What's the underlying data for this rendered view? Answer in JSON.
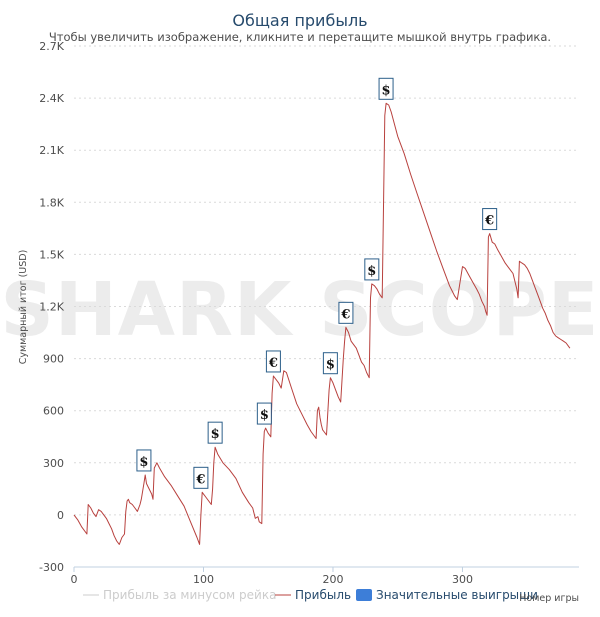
{
  "chart_data": {
    "type": "line",
    "title": "Общая прибыль",
    "subtitle": "Чтобы увеличить изображение, кликните и перетащите мышкой внутрь графика.",
    "xlabel": "Номер игры",
    "ylabel": "Суммарный итог (USD)",
    "xlim": [
      0,
      390
    ],
    "ylim": [
      -300,
      2700
    ],
    "x_ticks": [
      0,
      100,
      200,
      300
    ],
    "y_ticks": [
      -300,
      0,
      300,
      600,
      900,
      1200,
      1500,
      1800,
      2100,
      2400,
      2700
    ],
    "y_tick_labels": [
      "-300",
      "0",
      "300",
      "600",
      "900",
      "1.2K",
      "1.5K",
      "1.8K",
      "2.1K",
      "2.4K",
      "2.7K"
    ],
    "grid": true,
    "watermark": "SHARK SCOPE",
    "legend": {
      "placement": "bottom",
      "items": [
        {
          "label": "Прибыль за минусом рейка",
          "color": "#cccccc",
          "symbol": "line"
        },
        {
          "label": "Прибыль",
          "color": "#b8413e",
          "symbol": "line"
        },
        {
          "label": "Значительные выигрыши",
          "color": "#3d7ed8",
          "symbol": "box"
        }
      ]
    },
    "series": [
      {
        "name": "Прибыль",
        "color": "#b8413e",
        "points": [
          [
            0,
            0
          ],
          [
            3,
            -30
          ],
          [
            6,
            -70
          ],
          [
            10,
            -110
          ],
          [
            11,
            60
          ],
          [
            13,
            40
          ],
          [
            15,
            10
          ],
          [
            17,
            -10
          ],
          [
            19,
            30
          ],
          [
            21,
            20
          ],
          [
            23,
            0
          ],
          [
            25,
            -20
          ],
          [
            27,
            -50
          ],
          [
            29,
            -80
          ],
          [
            31,
            -120
          ],
          [
            33,
            -150
          ],
          [
            35,
            -170
          ],
          [
            37,
            -130
          ],
          [
            39,
            -110
          ],
          [
            40,
            20
          ],
          [
            41,
            80
          ],
          [
            42,
            90
          ],
          [
            43,
            70
          ],
          [
            45,
            60
          ],
          [
            47,
            40
          ],
          [
            49,
            20
          ],
          [
            51,
            60
          ],
          [
            52,
            90
          ],
          [
            54,
            180
          ],
          [
            55,
            230
          ],
          [
            56,
            180
          ],
          [
            58,
            150
          ],
          [
            60,
            120
          ],
          [
            61,
            90
          ],
          [
            62,
            270
          ],
          [
            64,
            300
          ],
          [
            66,
            270
          ],
          [
            70,
            220
          ],
          [
            75,
            170
          ],
          [
            80,
            110
          ],
          [
            85,
            50
          ],
          [
            90,
            -40
          ],
          [
            95,
            -130
          ],
          [
            97,
            -170
          ],
          [
            98,
            0
          ],
          [
            99,
            130
          ],
          [
            100,
            120
          ],
          [
            102,
            100
          ],
          [
            104,
            80
          ],
          [
            106,
            60
          ],
          [
            107,
            150
          ],
          [
            108,
            300
          ],
          [
            109,
            390
          ],
          [
            111,
            350
          ],
          [
            115,
            300
          ],
          [
            120,
            260
          ],
          [
            125,
            210
          ],
          [
            130,
            130
          ],
          [
            135,
            70
          ],
          [
            138,
            40
          ],
          [
            140,
            -20
          ],
          [
            142,
            -10
          ],
          [
            143,
            -40
          ],
          [
            145,
            -50
          ],
          [
            146,
            350
          ],
          [
            147,
            480
          ],
          [
            148,
            500
          ],
          [
            150,
            470
          ],
          [
            152,
            450
          ],
          [
            153,
            700
          ],
          [
            154,
            800
          ],
          [
            156,
            780
          ],
          [
            158,
            760
          ],
          [
            160,
            730
          ],
          [
            162,
            830
          ],
          [
            164,
            820
          ],
          [
            168,
            730
          ],
          [
            172,
            640
          ],
          [
            176,
            580
          ],
          [
            180,
            520
          ],
          [
            183,
            480
          ],
          [
            187,
            440
          ],
          [
            188,
            600
          ],
          [
            189,
            620
          ],
          [
            190,
            560
          ],
          [
            191,
            520
          ],
          [
            192,
            490
          ],
          [
            193,
            480
          ],
          [
            195,
            460
          ],
          [
            197,
            720
          ],
          [
            198,
            790
          ],
          [
            200,
            760
          ],
          [
            202,
            720
          ],
          [
            204,
            680
          ],
          [
            206,
            650
          ],
          [
            208,
            900
          ],
          [
            209,
            1000
          ],
          [
            210,
            1080
          ],
          [
            212,
            1050
          ],
          [
            214,
            1000
          ],
          [
            216,
            980
          ],
          [
            218,
            960
          ],
          [
            220,
            920
          ],
          [
            222,
            880
          ],
          [
            224,
            860
          ],
          [
            226,
            820
          ],
          [
            228,
            790
          ],
          [
            229,
            1250
          ],
          [
            230,
            1330
          ],
          [
            232,
            1320
          ],
          [
            234,
            1300
          ],
          [
            236,
            1270
          ],
          [
            238,
            1250
          ],
          [
            240,
            2300
          ],
          [
            241,
            2370
          ],
          [
            243,
            2360
          ],
          [
            245,
            2320
          ],
          [
            250,
            2180
          ],
          [
            255,
            2080
          ],
          [
            260,
            1960
          ],
          [
            265,
            1850
          ],
          [
            270,
            1740
          ],
          [
            275,
            1630
          ],
          [
            280,
            1520
          ],
          [
            285,
            1420
          ],
          [
            288,
            1360
          ],
          [
            290,
            1320
          ],
          [
            292,
            1290
          ],
          [
            294,
            1260
          ],
          [
            296,
            1240
          ],
          [
            300,
            1430
          ],
          [
            302,
            1420
          ],
          [
            305,
            1380
          ],
          [
            308,
            1340
          ],
          [
            311,
            1300
          ],
          [
            313,
            1270
          ],
          [
            315,
            1230
          ],
          [
            317,
            1200
          ],
          [
            318,
            1170
          ],
          [
            319,
            1150
          ],
          [
            320,
            1600
          ],
          [
            321,
            1620
          ],
          [
            323,
            1570
          ],
          [
            325,
            1560
          ],
          [
            327,
            1530
          ],
          [
            330,
            1490
          ],
          [
            333,
            1450
          ],
          [
            336,
            1420
          ],
          [
            339,
            1390
          ],
          [
            342,
            1300
          ],
          [
            343,
            1250
          ],
          [
            344,
            1460
          ],
          [
            346,
            1450
          ],
          [
            348,
            1440
          ],
          [
            350,
            1420
          ],
          [
            352,
            1390
          ],
          [
            354,
            1350
          ],
          [
            356,
            1310
          ],
          [
            358,
            1270
          ],
          [
            360,
            1230
          ],
          [
            362,
            1190
          ],
          [
            364,
            1160
          ],
          [
            366,
            1120
          ],
          [
            368,
            1090
          ],
          [
            370,
            1050
          ],
          [
            372,
            1030
          ],
          [
            374,
            1020
          ],
          [
            376,
            1010
          ],
          [
            378,
            1000
          ],
          [
            380,
            990
          ],
          [
            383,
            960
          ]
        ]
      }
    ],
    "markers": [
      {
        "x": 54,
        "y": 230,
        "symbol": "$"
      },
      {
        "x": 98,
        "y": 130,
        "symbol": "€"
      },
      {
        "x": 109,
        "y": 390,
        "symbol": "$"
      },
      {
        "x": 147,
        "y": 500,
        "symbol": "$"
      },
      {
        "x": 154,
        "y": 800,
        "symbol": "€"
      },
      {
        "x": 198,
        "y": 790,
        "symbol": "$"
      },
      {
        "x": 210,
        "y": 1080,
        "symbol": "€"
      },
      {
        "x": 230,
        "y": 1330,
        "symbol": "$"
      },
      {
        "x": 241,
        "y": 2370,
        "symbol": "$"
      },
      {
        "x": 321,
        "y": 1620,
        "symbol": "€"
      }
    ]
  }
}
